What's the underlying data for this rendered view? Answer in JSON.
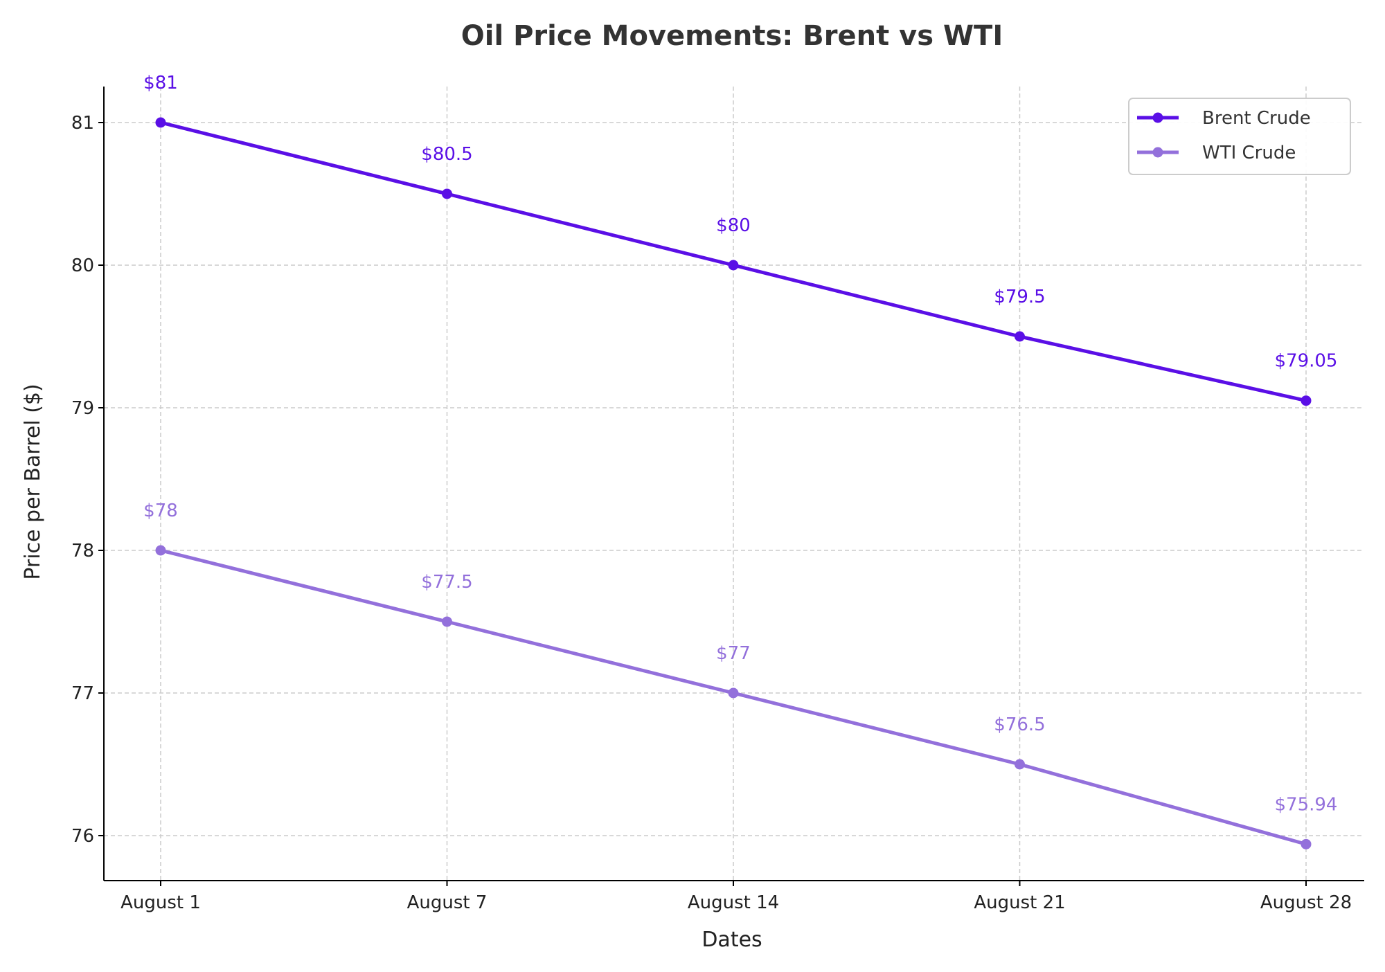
{
  "chart_data": {
    "type": "line",
    "title": "Oil Price Movements: Brent vs WTI",
    "xlabel": "Dates",
    "ylabel": "Price per Barrel ($)",
    "categories": [
      "August 1",
      "August 7",
      "August 14",
      "August 21",
      "August 28"
    ],
    "ylim": [
      75.7,
      81.25
    ],
    "yticks": [
      76,
      77,
      78,
      79,
      80,
      81
    ],
    "grid": true,
    "legend_position": "top-right",
    "series": [
      {
        "name": "Brent Crude",
        "color": "#5a0fe6",
        "values": [
          81,
          80.5,
          80,
          79.5,
          79.05
        ],
        "labels": [
          "$81",
          "$80.5",
          "$80",
          "$79.5",
          "$79.05"
        ]
      },
      {
        "name": "WTI Crude",
        "color": "#9370db",
        "values": [
          78,
          77.5,
          77,
          76.5,
          75.94
        ],
        "labels": [
          "$78",
          "$77.5",
          "$77",
          "$76.5",
          "$75.94"
        ]
      }
    ]
  }
}
